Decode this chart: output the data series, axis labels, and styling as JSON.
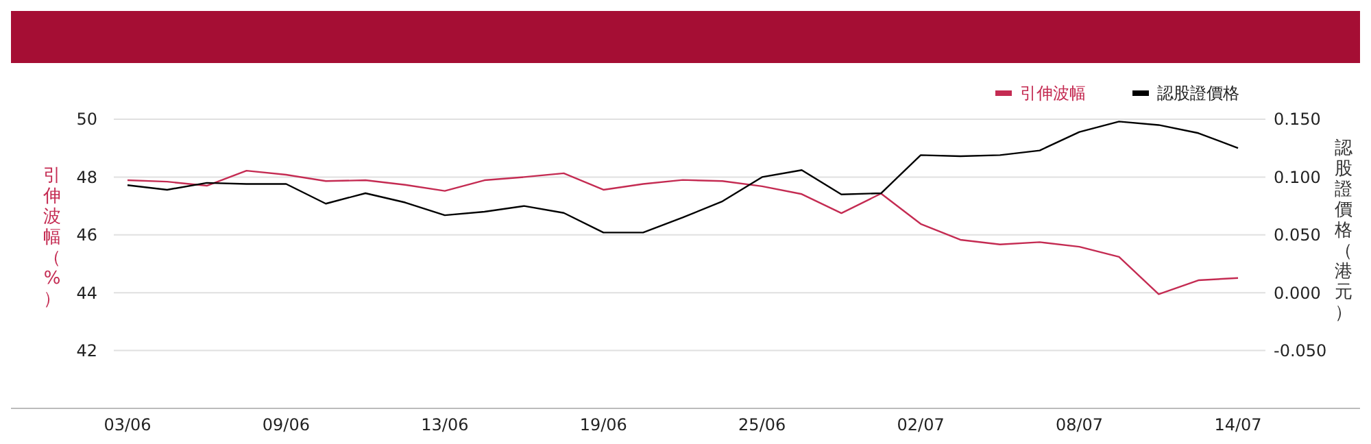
{
  "chart_data": {
    "type": "line",
    "categories": [
      "03/06",
      null,
      null,
      null,
      "09/06",
      null,
      null,
      null,
      "13/06",
      null,
      null,
      null,
      "19/06",
      null,
      null,
      null,
      "25/06",
      null,
      null,
      null,
      "02/07",
      null,
      null,
      null,
      "08/07",
      null,
      null,
      null,
      "14/07"
    ],
    "series": [
      {
        "name": "引伸波幅",
        "color": "#c42b52",
        "values": [
          47.89,
          47.84,
          47.7,
          48.22,
          48.08,
          47.86,
          47.89,
          47.73,
          47.52,
          47.89,
          48.0,
          48.13,
          47.56,
          47.76,
          47.9,
          47.86,
          47.68,
          47.41,
          46.75,
          47.43,
          46.38,
          45.83,
          45.67,
          45.75,
          45.59,
          45.24,
          43.95,
          44.43,
          44.51
        ]
      },
      {
        "name": "認股證價格",
        "color": "#000000",
        "axis": "y2",
        "values": [
          0.093,
          0.089,
          0.095,
          0.094,
          0.094,
          0.077,
          0.086,
          0.078,
          0.067,
          0.07,
          0.075,
          0.069,
          0.052,
          0.052,
          0.065,
          0.079,
          0.1,
          0.106,
          0.085,
          0.086,
          0.119,
          0.118,
          0.119,
          0.123,
          0.139,
          0.148,
          0.145,
          0.138,
          0.125
        ]
      }
    ],
    "ylabel": "引伸波幅（%）",
    "y2label": "認股證價格（港元）",
    "ylim": [
      40,
      50
    ],
    "yticks": [
      42,
      44,
      46,
      48,
      50
    ],
    "y2lim": [
      -0.1,
      0.15
    ],
    "y2ticks": [
      {
        "value": -0.05,
        "label": "-0.050"
      },
      {
        "value": 0,
        "label": "0.000"
      },
      {
        "value": 0.05,
        "label": "0.050"
      },
      {
        "value": 0.1,
        "label": "0.100"
      },
      {
        "value": 0.15,
        "label": "0.150"
      }
    ],
    "grid": "y",
    "legend": "top right",
    "marker": "none",
    "line_style": "solid"
  }
}
